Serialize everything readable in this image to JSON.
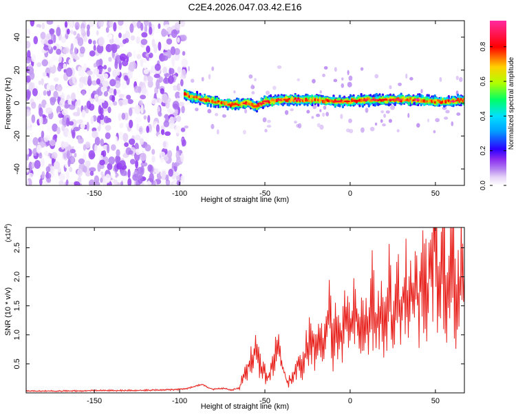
{
  "title": "C2E4.2026.047.03.42.E16",
  "colors": {
    "signal_line": "#e8201b",
    "colorscale": [
      "#ffffff",
      "#e6d3f7",
      "#b27ff0",
      "#8a2bf0",
      "#2b00ff",
      "#00e0ff",
      "#00ff66",
      "#b0ff00",
      "#ffd000",
      "#ff0000",
      "#ff2aa0"
    ]
  },
  "chart_data": [
    {
      "type": "heatmap",
      "title": "",
      "xlabel": "Height of straight line (km)",
      "ylabel": "Frequency (Hz)",
      "xlim": [
        -190,
        67
      ],
      "ylim": [
        -50,
        50
      ],
      "xticks": [
        -150,
        -100,
        -50,
        0,
        50
      ],
      "yticks": [
        -40,
        -20,
        0,
        20,
        40
      ],
      "grid": false,
      "colorbar": {
        "label": "Normalized spectral amplitude",
        "range": [
          0.0,
          0.95
        ],
        "ticks": [
          0.0,
          0.2,
          0.4,
          0.6,
          0.8
        ]
      },
      "regions": [
        {
          "x_range": [
            -190,
            -97
          ],
          "y_range": [
            -50,
            50
          ],
          "description": "broadband low-amplitude noise",
          "amplitude_range": [
            0.0,
            0.15
          ]
        },
        {
          "x_range": [
            -97,
            67
          ],
          "center_frequency_hz": 2,
          "bandwidth_hz": 6,
          "amplitude_range": [
            0.2,
            0.95
          ]
        }
      ],
      "band_center_track": {
        "x": [
          -97,
          -90,
          -80,
          -70,
          -60,
          -55,
          -50,
          -40,
          -30,
          -20,
          -10,
          0,
          10,
          20,
          30,
          40,
          50,
          60,
          67
        ],
        "y": [
          5,
          3,
          1,
          -1,
          0,
          -2,
          1,
          2,
          2,
          2,
          1,
          1,
          2,
          2,
          2,
          2,
          1,
          1,
          2
        ]
      }
    },
    {
      "type": "line",
      "title": "",
      "xlabel": "Height of straight line (km)",
      "ylabel": "SNR (10 * v/v)",
      "y_scale_label": "(x10",
      "y_scale_exponent": "4",
      "y_scale_close": ")",
      "xlim": [
        -190,
        67
      ],
      "ylim": [
        0,
        2.85
      ],
      "xticks": [
        -150,
        -100,
        -50,
        0,
        50
      ],
      "yticks": [
        0.5,
        1.0,
        1.5,
        2.0,
        2.5
      ],
      "ytick_labels": [
        "0.5",
        "1.0",
        "1.5",
        "2.0",
        "2.5"
      ],
      "grid": false,
      "series": [
        {
          "name": "",
          "x": [
            -190,
            -170,
            -150,
            -130,
            -110,
            -100,
            -95,
            -90,
            -87,
            -84,
            -80,
            -75,
            -70,
            -65,
            -62,
            -58,
            -55,
            -52,
            -50,
            -48,
            -45,
            -42,
            -40,
            -37,
            -34,
            -30,
            -27,
            -25,
            -22,
            -20,
            -17,
            -15,
            -12,
            -10,
            -8,
            -5,
            -3,
            0,
            3,
            5,
            8,
            10,
            13,
            15,
            18,
            20,
            23,
            25,
            28,
            30,
            33,
            35,
            38,
            40,
            43,
            45,
            48,
            50,
            52,
            55,
            57,
            60,
            62,
            65,
            67
          ],
          "y": [
            0.03,
            0.03,
            0.04,
            0.04,
            0.05,
            0.06,
            0.08,
            0.12,
            0.15,
            0.1,
            0.06,
            0.08,
            0.05,
            0.08,
            0.35,
            0.55,
            0.72,
            0.45,
            0.35,
            0.25,
            0.55,
            0.95,
            0.5,
            0.18,
            0.25,
            0.55,
            0.45,
            0.85,
            0.9,
            0.6,
            1.0,
            0.8,
            1.3,
            0.8,
            1.3,
            0.9,
            1.2,
            1.0,
            1.5,
            0.9,
            1.35,
            1.1,
            1.65,
            1.0,
            1.55,
            1.2,
            1.75,
            0.9,
            1.7,
            1.3,
            1.9,
            1.4,
            2.0,
            1.5,
            2.2,
            1.6,
            2.5,
            2.85,
            1.5,
            2.5,
            1.4,
            2.6,
            1.3,
            2.0,
            1.7
          ]
        }
      ]
    }
  ]
}
